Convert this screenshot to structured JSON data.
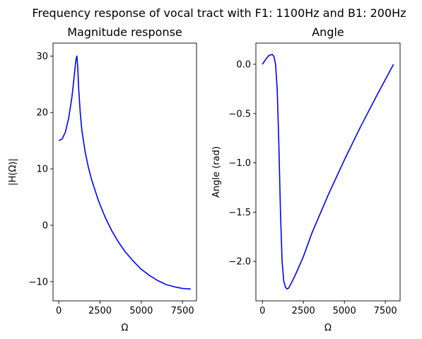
{
  "suptitle": "Frequency response of vocal tract with F1: 1100Hz and B1: 200Hz",
  "chart_data": [
    {
      "type": "line",
      "title": "Magnitude response",
      "xlabel": "Ω",
      "ylabel": "|H(Ω)|",
      "xlim": [
        -350,
        8350
      ],
      "ylim": [
        -13.4,
        32.3
      ],
      "xticks": [
        0,
        2500,
        5000,
        7500
      ],
      "xtick_labels": [
        "0",
        "2500",
        "5000",
        "7500"
      ],
      "yticks": [
        -10,
        0,
        10,
        20,
        30
      ],
      "ytick_labels": [
        "−10",
        "0",
        "10",
        "20",
        "30"
      ],
      "grid": false,
      "series": [
        {
          "color": "#0000ff",
          "x": [
            0,
            200,
            400,
            600,
            800,
            900,
            1000,
            1050,
            1100,
            1150,
            1200,
            1300,
            1400,
            1600,
            1800,
            2000,
            2400,
            2800,
            3200,
            3600,
            4000,
            4500,
            5000,
            5500,
            6000,
            6500,
            7000,
            7500,
            8000
          ],
          "y": [
            15.0,
            15.3,
            16.5,
            19.0,
            22.8,
            25.5,
            28.3,
            29.5,
            30.0,
            28.0,
            24.5,
            20.0,
            16.8,
            13.0,
            10.2,
            8.0,
            4.4,
            1.5,
            -0.9,
            -2.9,
            -4.6,
            -6.3,
            -7.8,
            -8.9,
            -9.8,
            -10.5,
            -10.9,
            -11.2,
            -11.3
          ]
        }
      ]
    },
    {
      "type": "line",
      "title": "Angle",
      "xlabel": "Ω",
      "ylabel": "Angle (rad)",
      "xlim": [
        -400,
        8400
      ],
      "ylim": [
        -2.4,
        0.215
      ],
      "xticks": [
        0,
        2500,
        5000,
        7500
      ],
      "xtick_labels": [
        "0",
        "2500",
        "5000",
        "7500"
      ],
      "yticks": [
        -2.0,
        -1.5,
        -1.0,
        -0.5,
        0.0
      ],
      "ytick_labels": [
        "−2.0",
        "−1.5",
        "−1.0",
        "−0.5",
        "0.0"
      ],
      "grid": false,
      "series": [
        {
          "color": "#0000ff",
          "x": [
            0,
            200,
            400,
            600,
            700,
            800,
            900,
            1000,
            1100,
            1200,
            1300,
            1400,
            1500,
            1600,
            1700,
            2000,
            2500,
            3000,
            4000,
            5000,
            6000,
            7000,
            8000
          ],
          "y": [
            0.0,
            0.05,
            0.09,
            0.1,
            0.08,
            0.0,
            -0.25,
            -0.8,
            -1.5,
            -2.0,
            -2.2,
            -2.26,
            -2.28,
            -2.27,
            -2.24,
            -2.14,
            -1.95,
            -1.72,
            -1.33,
            -0.97,
            -0.63,
            -0.31,
            0.0
          ]
        }
      ]
    }
  ]
}
